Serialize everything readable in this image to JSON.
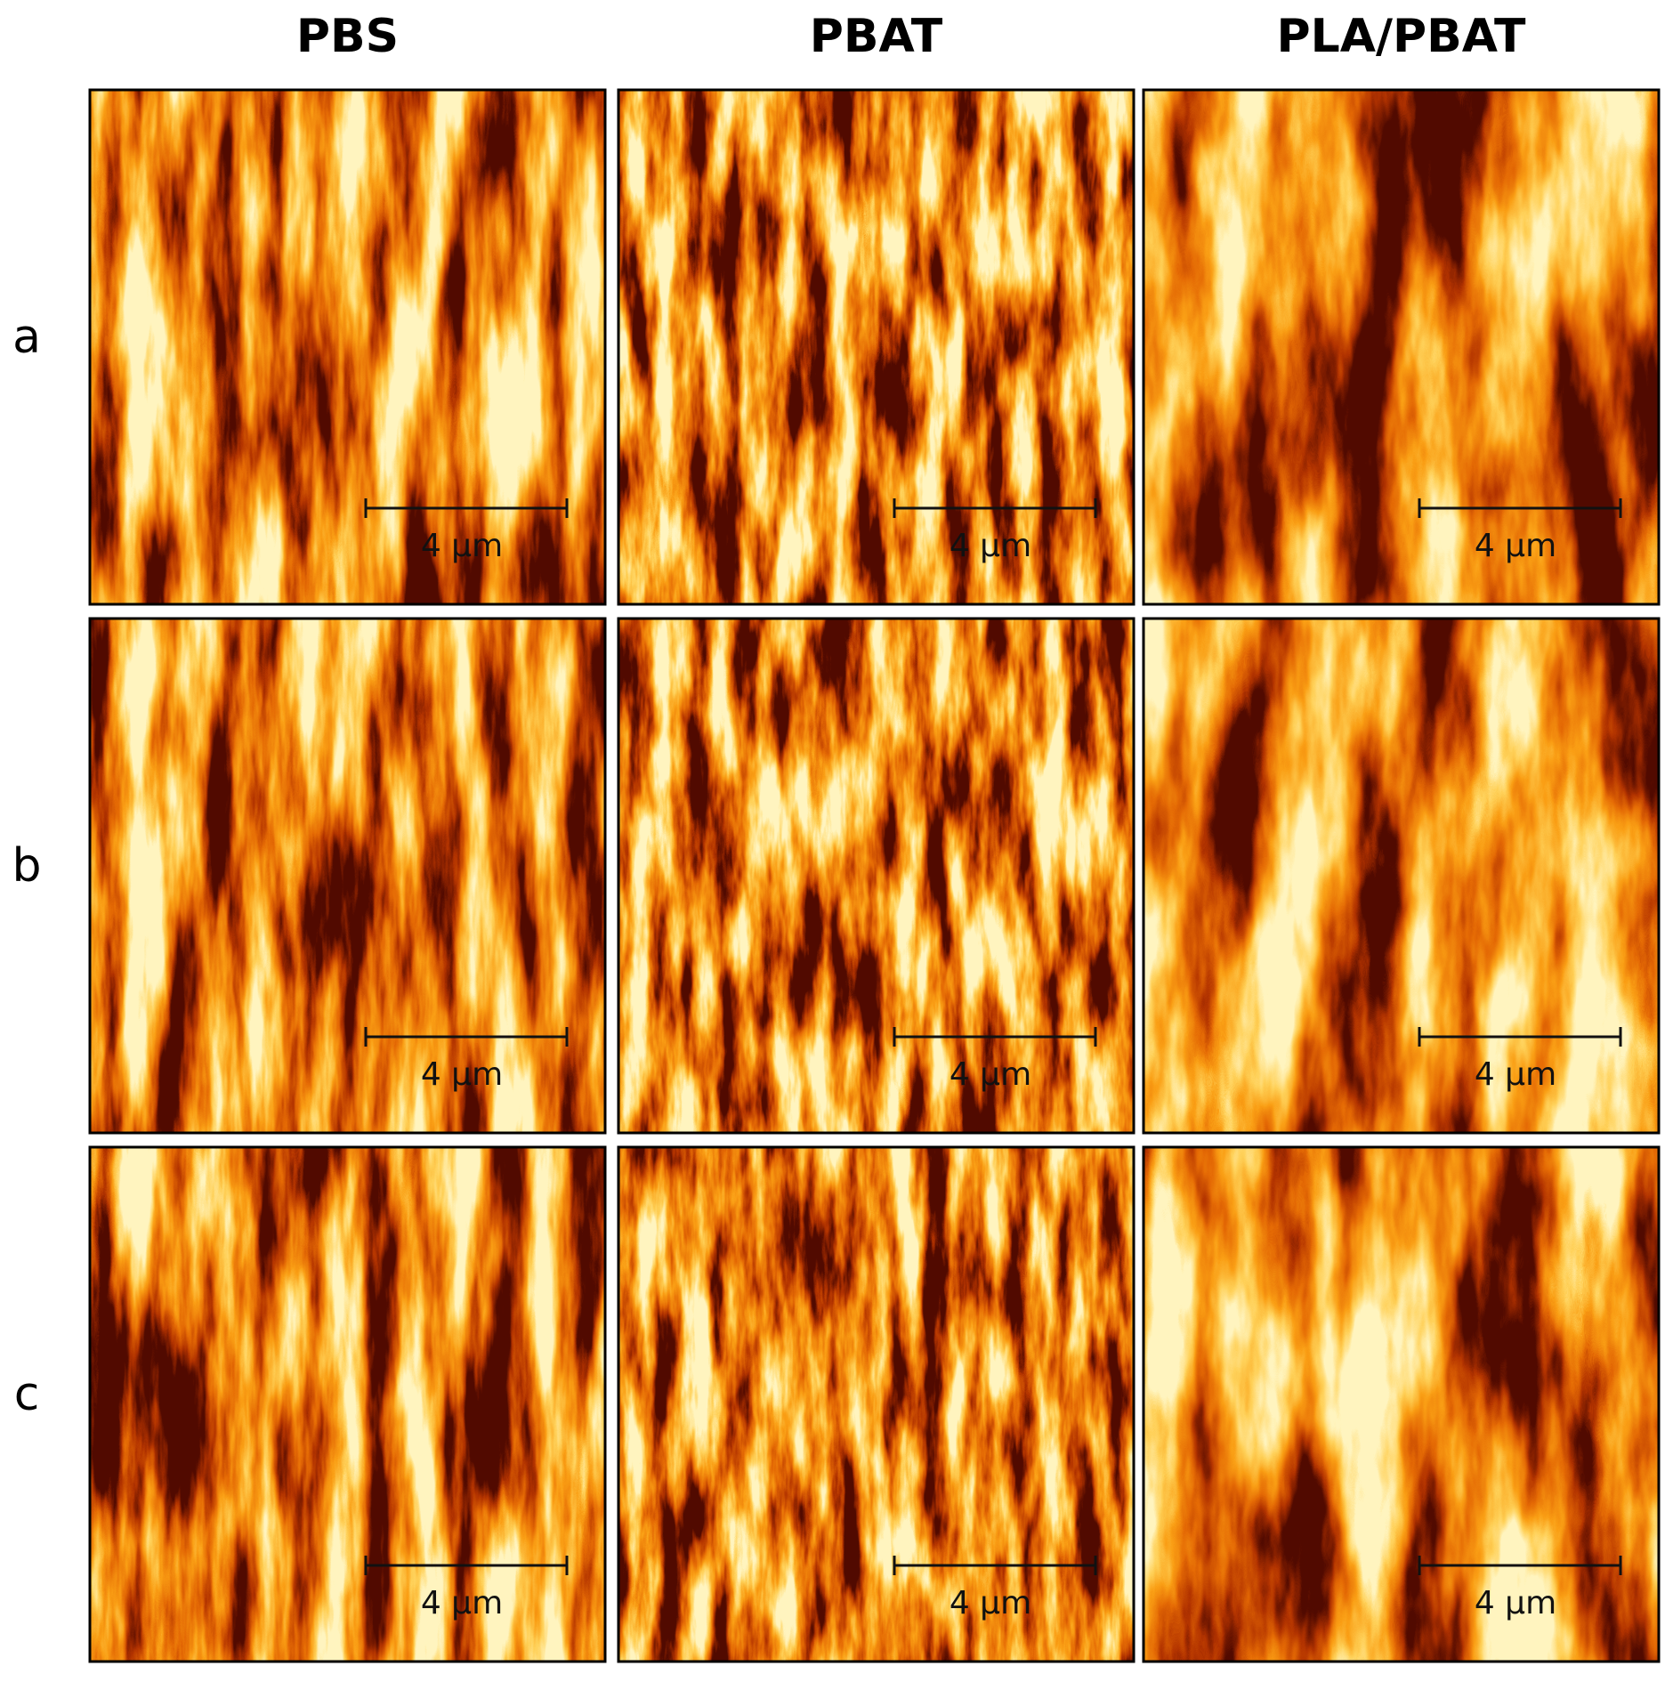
{
  "columns": [
    "PBS",
    "PBAT",
    "PLA/PBAT"
  ],
  "rows": [
    "a",
    "b",
    "c"
  ],
  "scale_bar_labels": [
    [
      "4 µm",
      "4 µm",
      "4 µm"
    ],
    [
      "4 µm",
      "4 µm",
      "4 µm"
    ],
    [
      "4 µm",
      "4 µm",
      "4 µm"
    ]
  ]
}
